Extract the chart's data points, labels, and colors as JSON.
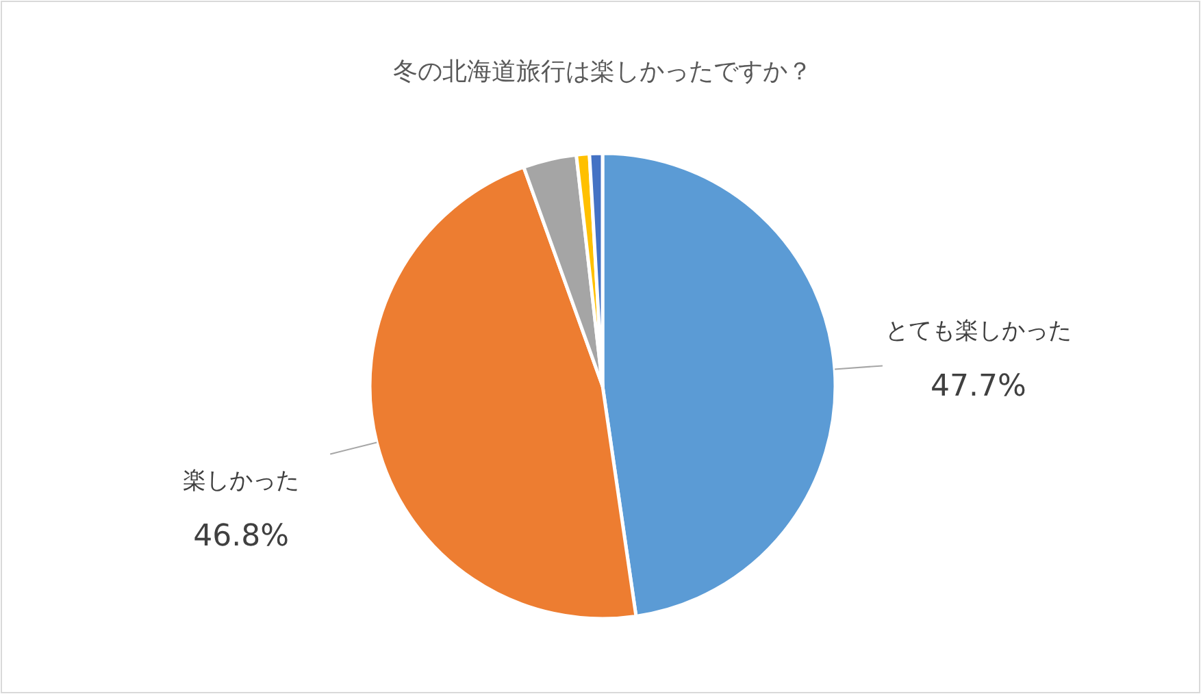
{
  "chart_data": {
    "type": "pie",
    "title": "冬の北海道旅行は楽しかったですか？",
    "categories": [
      "とても楽しかった",
      "楽しかった",
      null,
      null,
      null
    ],
    "values": [
      47.7,
      46.8,
      3.7,
      0.9,
      0.9
    ],
    "value_labels": [
      "47.7%",
      "46.8%",
      null,
      null,
      null
    ],
    "colors": [
      "#5b9bd5",
      "#ed7d31",
      "#a5a5a5",
      "#ffc000",
      "#4472c4"
    ],
    "legend": false
  }
}
